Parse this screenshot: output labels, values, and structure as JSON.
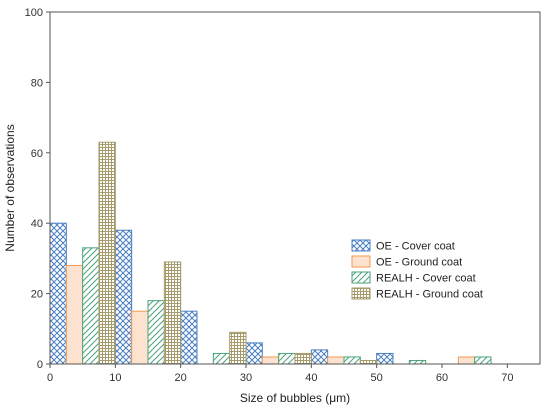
{
  "chart_data": {
    "type": "bar",
    "title": "",
    "xlabel": "Size of bubbles (μm)",
    "ylabel": "Number of observations",
    "xlim": [
      0,
      75
    ],
    "ylim": [
      0,
      100
    ],
    "xticks": [
      0,
      10,
      20,
      30,
      40,
      50,
      60,
      70
    ],
    "yticks": [
      0,
      20,
      40,
      60,
      80,
      100
    ],
    "bin_width": 10,
    "grid": false,
    "legend_position": "center-right",
    "series": [
      {
        "name": "OE - Cover coat",
        "color": "#4a7fc1",
        "pattern": "crosshatch",
        "x": [
          0,
          10,
          20,
          30,
          40,
          50,
          60
        ],
        "values": [
          40,
          38,
          15,
          6,
          4,
          3,
          0
        ]
      },
      {
        "name": "OE - Ground coat",
        "color": "#f29a52",
        "pattern": "light-fill",
        "x": [
          0,
          10,
          20,
          30,
          40,
          50,
          60
        ],
        "values": [
          28,
          15,
          0,
          2,
          2,
          0,
          2
        ]
      },
      {
        "name": "REALH - Cover coat",
        "color": "#4aa37a",
        "pattern": "diagonal",
        "x": [
          0,
          10,
          20,
          30,
          40,
          50,
          60
        ],
        "values": [
          33,
          18,
          3,
          3,
          2,
          1,
          2
        ]
      },
      {
        "name": "REALH - Ground coat",
        "color": "#a59a6b",
        "pattern": "grid",
        "x": [
          0,
          10,
          20,
          30,
          40,
          50,
          60
        ],
        "values": [
          63,
          29,
          9,
          3,
          1,
          0,
          0
        ]
      }
    ]
  }
}
